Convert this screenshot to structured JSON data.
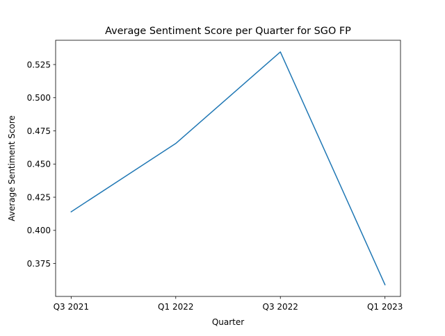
{
  "chart_data": {
    "type": "line",
    "title": "Average Sentiment Score per Quarter for SGO FP",
    "xlabel": "Quarter",
    "ylabel": "Average Sentiment Score",
    "categories": [
      "Q3 2021",
      "Q1 2022",
      "Q3 2022",
      "Q1 2023"
    ],
    "series": [
      {
        "values": [
          0.414,
          0.4655,
          0.5345,
          0.359
        ],
        "color": "#1f77b4"
      }
    ],
    "y_ticks": [
      0.375,
      0.4,
      0.425,
      0.45,
      0.475,
      0.5,
      0.525
    ],
    "y_tick_labels": [
      "0.375",
      "0.400",
      "0.425",
      "0.450",
      "0.475",
      "0.500",
      "0.525"
    ],
    "ylim": [
      0.3502,
      0.5433
    ],
    "grid": false,
    "legend": "none"
  }
}
